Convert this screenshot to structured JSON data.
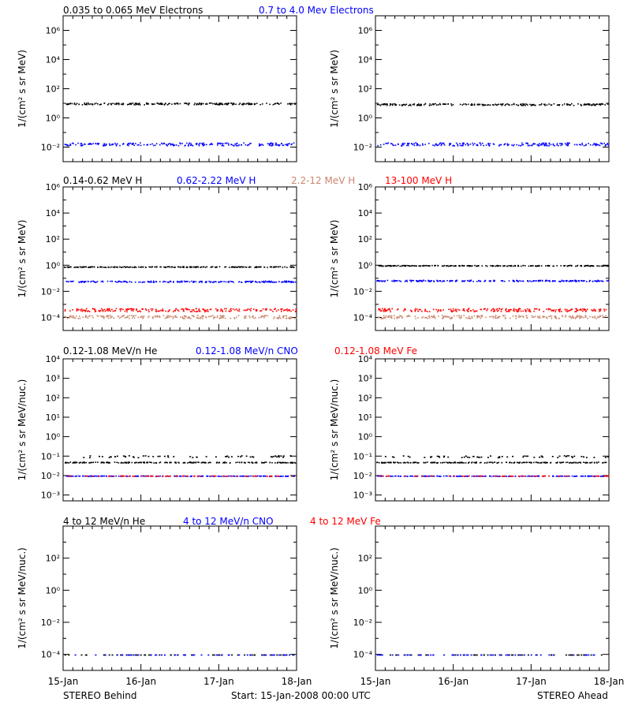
{
  "colors": {
    "black": "#000000",
    "blue": "#0000ff",
    "red": "#ff0000",
    "salmon": "#c8876e"
  },
  "rows": [
    {
      "legend": [
        {
          "text": "0.035 to 0.065 MeV Electrons",
          "color": "#000000"
        },
        {
          "text": "0.7 to 4.0 Mev Electrons",
          "color": "#0000ff"
        }
      ]
    },
    {
      "legend": [
        {
          "text": "0.14-0.62 MeV H",
          "color": "#000000"
        },
        {
          "text": "0.62-2.22 MeV H",
          "color": "#0000ff"
        },
        {
          "text": "2.2-12 MeV H",
          "color": "#c8876e"
        },
        {
          "text": "13-100 MeV H",
          "color": "#ff0000"
        }
      ]
    },
    {
      "legend": [
        {
          "text": "0.12-1.08 MeV/n He",
          "color": "#000000"
        },
        {
          "text": "0.12-1.08 MeV/n CNO",
          "color": "#0000ff"
        },
        {
          "text": "0.12-1.08 MeV Fe",
          "color": "#ff0000"
        }
      ]
    },
    {
      "legend": [
        {
          "text": "4 to 12 MeV/n He",
          "color": "#000000"
        },
        {
          "text": "4 to 12 MeV/n CNO",
          "color": "#0000ff"
        },
        {
          "text": "4 to 12 MeV Fe",
          "color": "#ff0000"
        }
      ]
    }
  ],
  "footer": {
    "left": "STEREO Behind",
    "center": "Start: 15-Jan-2008 00:00 UTC",
    "right": "STEREO Ahead"
  },
  "chart_data": [
    {
      "type": "scatter",
      "row": 0,
      "spacecraft": "STEREO Behind",
      "yscale": "log",
      "ylabel": "1/(cm² s sr MeV)",
      "ylim_exp": [
        -3,
        7
      ],
      "yticks": [
        -2,
        0,
        2,
        4,
        6
      ],
      "yticklabels": [
        "10⁻²",
        "10⁰",
        "10²",
        "10⁴",
        "10⁶"
      ],
      "xticks": [
        "15-Jan",
        "16-Jan",
        "17-Jan",
        "18-Jan"
      ],
      "series": [
        {
          "color": "#000000",
          "level": 10,
          "scatter_dex": 0.06
        },
        {
          "color": "#0000ff",
          "level": 0.017,
          "scatter_dex": 0.1
        }
      ]
    },
    {
      "type": "scatter",
      "row": 0,
      "spacecraft": "STEREO Ahead",
      "yscale": "log",
      "ylabel": "1/(cm² s sr MeV)",
      "ylim_exp": [
        -3,
        7
      ],
      "yticks": [
        -2,
        0,
        2,
        4,
        6
      ],
      "yticklabels": [
        "10⁻²",
        "10⁰",
        "10²",
        "10⁴",
        "10⁶"
      ],
      "xticks": [
        "15-Jan",
        "16-Jan",
        "17-Jan",
        "18-Jan"
      ],
      "series": [
        {
          "color": "#000000",
          "level": 9,
          "scatter_dex": 0.06
        },
        {
          "color": "#0000ff",
          "level": 0.017,
          "scatter_dex": 0.1
        }
      ]
    },
    {
      "type": "scatter",
      "row": 1,
      "spacecraft": "STEREO Behind",
      "yscale": "log",
      "ylabel": "1/(cm² s sr MeV)",
      "ylim_exp": [
        -5,
        6
      ],
      "yticks": [
        -4,
        -2,
        0,
        2,
        4,
        6
      ],
      "yticklabels": [
        "10⁻⁴",
        "10⁻²",
        "10⁰",
        "10²",
        "10⁴",
        "10⁶"
      ],
      "xticks": [
        "15-Jan",
        "16-Jan",
        "17-Jan",
        "18-Jan"
      ],
      "series": [
        {
          "color": "#000000",
          "level": 0.8,
          "scatter_dex": 0.03
        },
        {
          "color": "#0000ff",
          "level": 0.06,
          "scatter_dex": 0.05
        },
        {
          "color": "#c8876e",
          "level": 0.00012,
          "scatter_dex": 0.12
        },
        {
          "color": "#ff0000",
          "level": 0.0004,
          "scatter_dex": 0.12
        }
      ]
    },
    {
      "type": "scatter",
      "row": 1,
      "spacecraft": "STEREO Ahead",
      "yscale": "log",
      "ylabel": "1/(cm² s sr MeV)",
      "ylim_exp": [
        -5,
        6
      ],
      "yticks": [
        -4,
        -2,
        0,
        2,
        4,
        6
      ],
      "yticklabels": [
        "10⁻⁴",
        "10⁻²",
        "10⁰",
        "10²",
        "10⁴",
        "10⁶"
      ],
      "xticks": [
        "15-Jan",
        "16-Jan",
        "17-Jan",
        "18-Jan"
      ],
      "series": [
        {
          "color": "#000000",
          "level": 1.0,
          "scatter_dex": 0.03
        },
        {
          "color": "#0000ff",
          "level": 0.07,
          "scatter_dex": 0.05
        },
        {
          "color": "#c8876e",
          "level": 0.00012,
          "scatter_dex": 0.12
        },
        {
          "color": "#ff0000",
          "level": 0.0004,
          "scatter_dex": 0.12
        }
      ]
    },
    {
      "type": "scatter",
      "row": 2,
      "spacecraft": "STEREO Behind",
      "yscale": "log",
      "ylabel": "1/(cm² s sr MeV/nuc.)",
      "ylim_exp": [
        -3.3,
        4
      ],
      "yticks": [
        -3,
        -2,
        -1,
        0,
        1,
        2,
        3,
        4
      ],
      "yticklabels": [
        "10⁻³",
        "10⁻²",
        "10⁻¹",
        "10⁰",
        "10¹",
        "10²",
        "10³",
        "10⁴"
      ],
      "xticks": [
        "15-Jan",
        "16-Jan",
        "17-Jan",
        "18-Jan"
      ],
      "series": [
        {
          "color": "#000000",
          "level": 0.05,
          "scatter_dex": 0.02
        },
        {
          "color": "#000000",
          "level": 0.1,
          "scatter_dex": 0.05,
          "sparse": true
        },
        {
          "color": "#0000ff",
          "level": 0.01,
          "scatter_dex": 0.01
        },
        {
          "color": "#ff0000",
          "level": 0.01,
          "scatter_dex": 0.01,
          "sparse": true
        }
      ]
    },
    {
      "type": "scatter",
      "row": 2,
      "spacecraft": "STEREO Ahead",
      "yscale": "log",
      "ylabel": "1/(cm² s sr MeV/nuc.)",
      "ylim_exp": [
        -3.3,
        4
      ],
      "yticks": [
        -3,
        -2,
        -1,
        0,
        1,
        2,
        3,
        4
      ],
      "yticklabels": [
        "10⁻³",
        "10⁻²",
        "10⁻¹",
        "10⁰",
        "10¹",
        "10²",
        "10³",
        "10⁴"
      ],
      "xticks": [
        "15-Jan",
        "16-Jan",
        "17-Jan",
        "18-Jan"
      ],
      "series": [
        {
          "color": "#000000",
          "level": 0.05,
          "scatter_dex": 0.02
        },
        {
          "color": "#000000",
          "level": 0.1,
          "scatter_dex": 0.05,
          "sparse": true
        },
        {
          "color": "#0000ff",
          "level": 0.01,
          "scatter_dex": 0.01
        },
        {
          "color": "#ff0000",
          "level": 0.01,
          "scatter_dex": 0.01,
          "sparse": true
        }
      ]
    },
    {
      "type": "scatter",
      "row": 3,
      "spacecraft": "STEREO Behind",
      "yscale": "log",
      "ylabel": "1/(cm² s sr MeV/nuc.)",
      "ylim_exp": [
        -5,
        4
      ],
      "yticks": [
        -4,
        -2,
        0,
        2
      ],
      "yticklabels": [
        "10⁻⁴",
        "10⁻²",
        "10⁰",
        "10²"
      ],
      "xticks": [
        "15-Jan",
        "16-Jan",
        "17-Jan",
        "18-Jan"
      ],
      "series": [
        {
          "color": "#000000",
          "level": 0.0001,
          "scatter_dex": 0.0,
          "sparse": true
        },
        {
          "color": "#0000ff",
          "level": 0.0001,
          "scatter_dex": 0.0,
          "sparse": true
        }
      ]
    },
    {
      "type": "scatter",
      "row": 3,
      "spacecraft": "STEREO Ahead",
      "yscale": "log",
      "ylabel": "1/(cm² s sr MeV/nuc.)",
      "ylim_exp": [
        -5,
        4
      ],
      "yticks": [
        -4,
        -2,
        0,
        2
      ],
      "yticklabels": [
        "10⁻⁴",
        "10⁻²",
        "10⁰",
        "10²"
      ],
      "xticks": [
        "15-Jan",
        "16-Jan",
        "17-Jan",
        "18-Jan"
      ],
      "series": [
        {
          "color": "#000000",
          "level": 0.0001,
          "scatter_dex": 0.0,
          "sparse": true
        },
        {
          "color": "#0000ff",
          "level": 0.0001,
          "scatter_dex": 0.0,
          "sparse": true
        }
      ]
    }
  ]
}
